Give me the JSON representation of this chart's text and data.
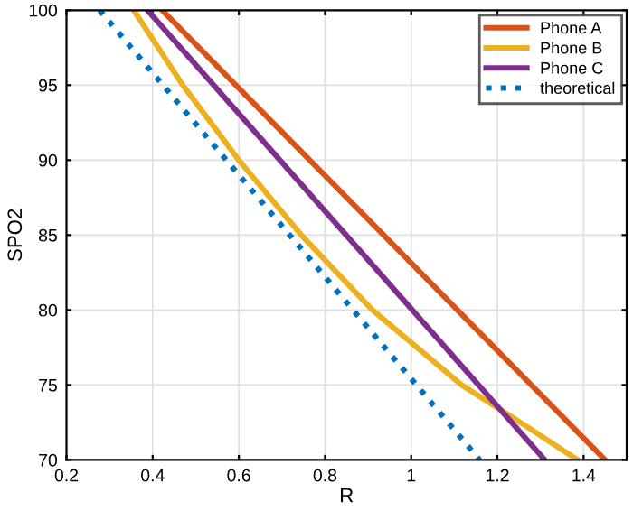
{
  "chart_data": {
    "type": "line",
    "xlabel": "R",
    "ylabel": "SPO2",
    "xlim": [
      0.2,
      1.5
    ],
    "xticks": [
      0.2,
      0.4,
      0.6,
      0.8,
      1,
      1.2,
      1.4
    ],
    "ylim": [
      70,
      100
    ],
    "yticks": [
      70,
      75,
      80,
      85,
      90,
      95,
      100
    ],
    "grid": true,
    "legend": "top right",
    "series": [
      {
        "name": "Phone A",
        "color": "#d95319",
        "x": [
          0.422,
          1.45
        ],
        "values": [
          100,
          70
        ]
      },
      {
        "name": "Phone B",
        "color": "#edb120",
        "x": [
          0.356,
          0.47,
          0.6,
          0.745,
          0.91,
          1.117,
          1.248,
          1.386
        ],
        "values": [
          100,
          95,
          90,
          85,
          80,
          75,
          72.6,
          70
        ]
      },
      {
        "name": "Phone C",
        "color": "#7e2f8e",
        "x": [
          0.388,
          1.31
        ],
        "values": [
          100,
          70
        ]
      },
      {
        "name": "theoretical",
        "color": "#0072bd",
        "line_style": "dotted",
        "x": [
          0.277,
          1.159
        ],
        "values": [
          100,
          70
        ]
      }
    ]
  }
}
